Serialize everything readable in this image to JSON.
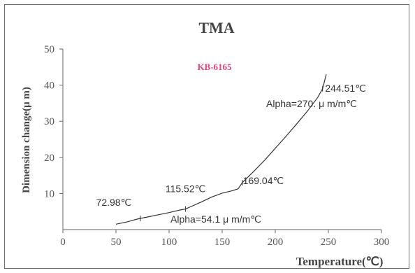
{
  "chart_data": {
    "type": "line",
    "title": "TMA",
    "subtitle": "KB-6165",
    "xlabel": "Temperature(℃)",
    "ylabel": "Dimension change(μ m)",
    "xlim": [
      0,
      300
    ],
    "ylim": [
      0,
      50
    ],
    "xticks": [
      "0",
      "50",
      "100",
      "150",
      "200",
      "250",
      "300"
    ],
    "yticks": [
      "10",
      "20",
      "30",
      "40",
      "50"
    ],
    "grid": false,
    "series": [
      {
        "x": [
          50,
          55,
          60,
          65,
          70,
          72.98,
          80,
          90,
          100,
          110,
          115.52,
          120,
          130,
          140,
          150,
          160,
          165,
          169.04,
          180,
          190,
          200,
          210,
          220,
          230,
          240,
          244.51,
          248
        ],
        "y": [
          1.5,
          1.8,
          2.1,
          2.5,
          2.9,
          3.1,
          3.5,
          4.1,
          4.7,
          5.4,
          5.7,
          6.3,
          7.6,
          9.0,
          10.1,
          10.8,
          11.3,
          13.0,
          16.2,
          19.2,
          22.5,
          25.8,
          29.2,
          32.7,
          36.6,
          39.0,
          43.0
        ]
      }
    ],
    "annotations": [
      {
        "text": "72.98℃",
        "x": 72.98,
        "y": 3.1
      },
      {
        "text": "115.52℃",
        "x": 115.52,
        "y": 5.7
      },
      {
        "text": "169.04℃",
        "x": 169.04,
        "y": 13.0
      },
      {
        "text": "244.51℃",
        "x": 244.51,
        "y": 39.0
      },
      {
        "text": "Alpha=54.1 μ m/m℃"
      },
      {
        "text": "Alpha=270. μ m/m℃"
      }
    ],
    "colors": {
      "line": "#333333",
      "subtitle": "#e0427a",
      "axis": "#555555"
    }
  }
}
